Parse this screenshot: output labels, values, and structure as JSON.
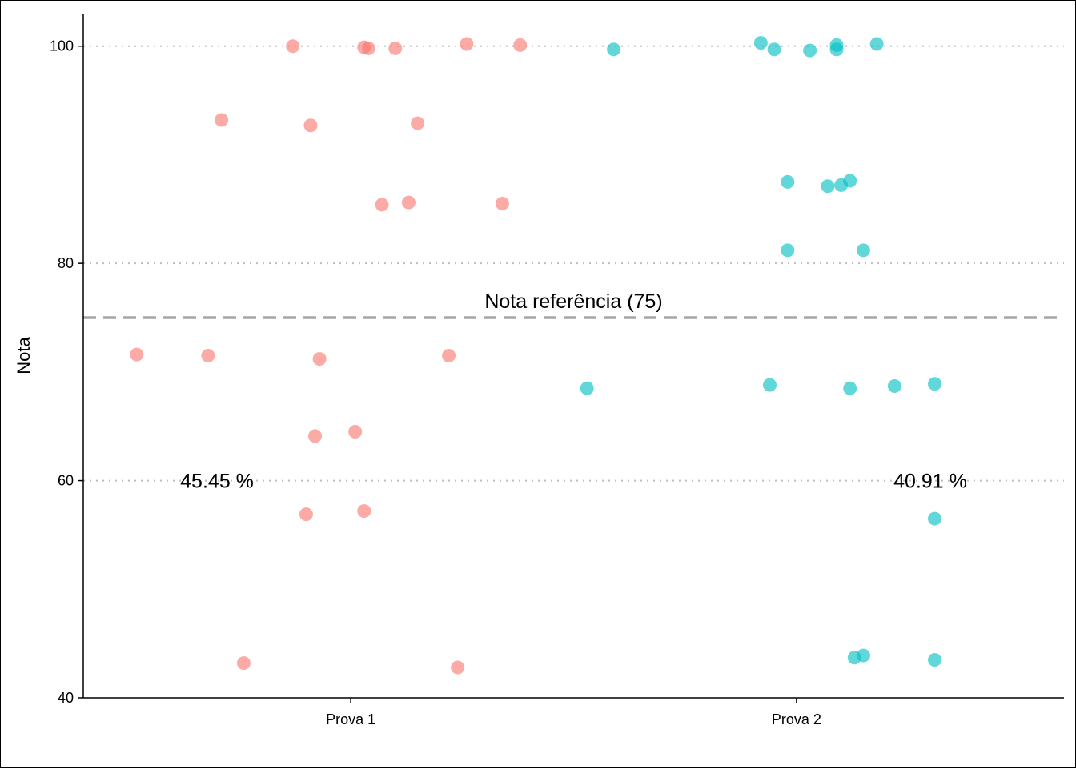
{
  "chart_data": {
    "type": "scatter",
    "title": "",
    "xlabel": "",
    "ylabel": "Nota",
    "categories": [
      "Prova 1",
      "Prova 2"
    ],
    "ylim": [
      40,
      103
    ],
    "yticks": [
      "40",
      "60",
      "80",
      "100"
    ],
    "grid": "horizontal dotted at major ticks",
    "legend": "none",
    "colors": {
      "Prova 1": "#F8766D",
      "Prova 2": "#00BFC4",
      "reference_line": "#A6A6A6",
      "grid": "#BEBEBE"
    },
    "reference_line": {
      "y": 75,
      "label": "Nota referência (75)"
    },
    "annotations": [
      {
        "category": "Prova 1",
        "y": 60,
        "text": "45.45 %"
      },
      {
        "category": "Prova 2",
        "y": 60,
        "text": "40.91 %"
      }
    ],
    "series": [
      {
        "category": "Prova 1",
        "points": [
          {
            "x": 0.87,
            "y": 100.0
          },
          {
            "x": 1.03,
            "y": 99.9
          },
          {
            "x": 1.04,
            "y": 99.8
          },
          {
            "x": 1.1,
            "y": 99.8
          },
          {
            "x": 1.26,
            "y": 100.2
          },
          {
            "x": 1.38,
            "y": 100.1
          },
          {
            "x": 0.71,
            "y": 93.2
          },
          {
            "x": 0.91,
            "y": 92.7
          },
          {
            "x": 1.15,
            "y": 92.9
          },
          {
            "x": 1.07,
            "y": 85.4
          },
          {
            "x": 1.13,
            "y": 85.6
          },
          {
            "x": 1.34,
            "y": 85.5
          },
          {
            "x": 0.52,
            "y": 71.6
          },
          {
            "x": 0.68,
            "y": 71.5
          },
          {
            "x": 0.93,
            "y": 71.2
          },
          {
            "x": 1.22,
            "y": 71.5
          },
          {
            "x": 0.92,
            "y": 64.1
          },
          {
            "x": 1.01,
            "y": 64.5
          },
          {
            "x": 0.9,
            "y": 56.9
          },
          {
            "x": 1.03,
            "y": 57.2
          },
          {
            "x": 0.76,
            "y": 43.2
          },
          {
            "x": 1.24,
            "y": 42.8
          }
        ]
      },
      {
        "category": "Prova 2",
        "points": [
          {
            "x": 1.59,
            "y": 99.7
          },
          {
            "x": 1.92,
            "y": 100.3
          },
          {
            "x": 1.95,
            "y": 99.7
          },
          {
            "x": 2.03,
            "y": 99.6
          },
          {
            "x": 2.09,
            "y": 100.1
          },
          {
            "x": 2.09,
            "y": 99.7
          },
          {
            "x": 2.18,
            "y": 100.2
          },
          {
            "x": 1.98,
            "y": 87.5
          },
          {
            "x": 2.07,
            "y": 87.1
          },
          {
            "x": 2.1,
            "y": 87.2
          },
          {
            "x": 2.12,
            "y": 87.6
          },
          {
            "x": 1.98,
            "y": 81.2
          },
          {
            "x": 2.15,
            "y": 81.2
          },
          {
            "x": 1.53,
            "y": 68.5
          },
          {
            "x": 1.94,
            "y": 68.8
          },
          {
            "x": 2.12,
            "y": 68.5
          },
          {
            "x": 2.22,
            "y": 68.7
          },
          {
            "x": 2.31,
            "y": 68.9
          },
          {
            "x": 2.31,
            "y": 56.5
          },
          {
            "x": 2.13,
            "y": 43.7
          },
          {
            "x": 2.15,
            "y": 43.9
          },
          {
            "x": 2.31,
            "y": 43.5
          }
        ]
      }
    ]
  }
}
